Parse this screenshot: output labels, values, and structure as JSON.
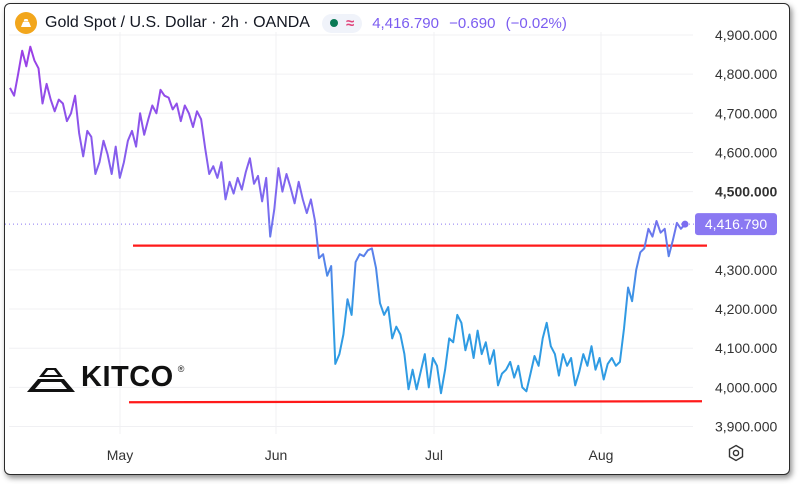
{
  "header": {
    "title": "Gold Spot / U.S. Dollar · 2h · OANDA",
    "last": "4,416.790",
    "change": "−0.690",
    "change_pct": "(−0.02%)"
  },
  "colors": {
    "price_high": "#9c3fe6",
    "price_mid": "#7b6cf0",
    "price_low": "#2f9be3",
    "level_line": "#ff1a1a",
    "last_price_label": "#8a78f2",
    "axis_text": "#333333"
  },
  "logo": {
    "text": "KITCO",
    "reg": "®"
  },
  "icons": [
    "gold-coin-icon",
    "status-dot-icon",
    "wave-icon",
    "kitco-logo-icon",
    "settings-gear-icon"
  ],
  "chart_data": {
    "type": "line",
    "title": "Gold Spot / U.S. Dollar · 2h · OANDA",
    "xlabel": "",
    "ylabel": "",
    "x_ticks": [
      "May",
      "Jun",
      "Jul",
      "Aug"
    ],
    "y_ticks": [
      "4,900.000",
      "4,800.000",
      "4,700.000",
      "4,600.000",
      "4,500.000",
      "4,300.000",
      "4,200.000",
      "4,100.000",
      "4,000.000",
      "3,900.000"
    ],
    "ylim": [
      3860,
      4940
    ],
    "last_price": 4416.79,
    "last_price_label": "4,416.790",
    "series": [
      {
        "values": [
          4765,
          4745,
          4800,
          4860,
          4820,
          4870,
          4835,
          4815,
          4725,
          4775,
          4735,
          4705,
          4735,
          4725,
          4680,
          4700,
          4745,
          4650,
          4590,
          4655,
          4640,
          4545,
          4575,
          4630,
          4595,
          4545,
          4615,
          4535,
          4575,
          4630,
          4655,
          4615,
          4700,
          4645,
          4685,
          4720,
          4700,
          4760,
          4745,
          4740,
          4710,
          4725,
          4680,
          4720,
          4700,
          4665,
          4705,
          4685,
          4610,
          4545,
          4565,
          4535,
          4575,
          4480,
          4525,
          4495,
          4535,
          4505,
          4550,
          4585,
          4520,
          4540,
          4475,
          4535,
          4385,
          4455,
          4560,
          4500,
          4545,
          4510,
          4470,
          4525,
          4480,
          4445,
          4480,
          4425,
          4330,
          4340,
          4285,
          4310,
          4060,
          4085,
          4135,
          4225,
          4185,
          4320,
          4340,
          4335,
          4350,
          4355,
          4305,
          4215,
          4185,
          4205,
          4125,
          4155,
          4135,
          4085,
          3995,
          4045,
          3995,
          4040,
          4085,
          4000,
          4075,
          4055,
          3985,
          4045,
          4125,
          4115,
          4185,
          4165,
          4095,
          4135,
          4075,
          4145,
          4085,
          4115,
          4060,
          4095,
          4005,
          4035,
          4045,
          4065,
          4025,
          4055,
          4000,
          3990,
          4035,
          4080,
          4055,
          4125,
          4165,
          4105,
          4085,
          4030,
          4085,
          4055,
          4075,
          4005,
          4040,
          4085,
          4055,
          4105,
          4045,
          4075,
          4020,
          4060,
          4075,
          4055,
          4065,
          4150,
          4255,
          4220,
          4300,
          4345,
          4355,
          4405,
          4385,
          4425,
          4395,
          4405,
          4335,
          4375,
          4420,
          4405,
          4416.79
        ]
      }
    ],
    "reference_lines": [
      4362,
      3962
    ]
  }
}
